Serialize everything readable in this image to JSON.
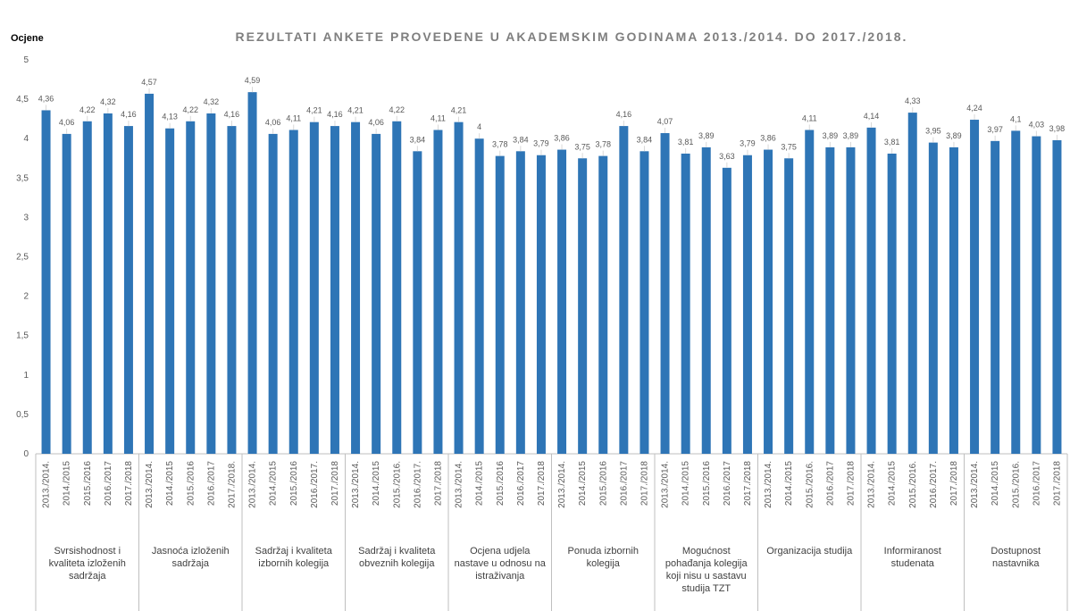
{
  "chart_data": {
    "type": "bar",
    "title": "REZULTATI ANKETE PROVEDENE U AKADEMSKIM GODINAMA 2013./2014. DO 2017./2018.",
    "y_label": "Ocjene",
    "groups": [
      "Svrsishodnost i kvaliteta izloženih sadržaja",
      "Jasnoća izloženih sadržaja",
      "Sadržaj i kvaliteta izbornih kolegija",
      "Sadržaj i kvaliteta obveznih kolegija",
      "Ocjena udjela nastave u odnosu na istraživanja",
      "Ponuda izbornih kolegija",
      "Mogućnost pohađanja kolegija koji nisu u sastavu studija TZT",
      "Organizacija  studija",
      "Informiranost studenata",
      "Dostupnost nastavnika"
    ],
    "categories": [
      "2013./2014.",
      "2014./2015",
      "2015./2016",
      "2016./2017",
      "2017./2018",
      "2013./2014.",
      "2014./2015",
      "2015./2016",
      "2016./2017",
      "2017./2018.",
      "2013./2014.",
      "2014./2015",
      "2015./2016",
      "2016./2017.",
      "2017./2018",
      "2013./2014.",
      "2014./2015",
      "2015./2016.",
      "2016./2017.",
      "2017./2018",
      "2013./2014.",
      "2014./2015",
      "2015./2016",
      "2016./2017",
      "2017./2018",
      "2013./2014.",
      "2014./2015",
      "2015./2016",
      "2016./2017",
      "2017./2018",
      "2013./2014.",
      "2014./2015",
      "2015./2016",
      "2016./2017",
      "2017./2018",
      "2013./2014.",
      "2014./2015",
      "2015./2016.",
      "2016./2017",
      "2017./2018",
      "2013./2014.",
      "2014./2015",
      "2015./2016.",
      "2016./2017.",
      "2017./2018",
      "2013./2014.",
      "2014./2015",
      "2015./2016.",
      "2016./2017",
      "2017./2018"
    ],
    "series": [
      {
        "name": "Ocjene",
        "color": "#2e75b6",
        "values": [
          4.36,
          4.06,
          4.22,
          4.32,
          4.16,
          4.57,
          4.13,
          4.22,
          4.32,
          4.16,
          4.59,
          4.06,
          4.11,
          4.21,
          4.16,
          4.21,
          4.06,
          4.22,
          3.84,
          4.11,
          4.21,
          4,
          3.78,
          3.84,
          3.79,
          3.86,
          3.75,
          3.78,
          4.16,
          3.84,
          4.07,
          3.81,
          3.89,
          3.63,
          3.79,
          3.86,
          3.75,
          4.11,
          3.89,
          3.89,
          4.14,
          3.81,
          4.33,
          3.95,
          3.89,
          4.24,
          3.97,
          4.1,
          4.03,
          3.98
        ],
        "value_labels": [
          "4,36",
          "4,06",
          "4,22",
          "4,32",
          "4,16",
          "4,57",
          "4,13",
          "4,22",
          "4,32",
          "4,16",
          "4,59",
          "4,06",
          "4,11",
          "4,21",
          "4,16",
          "4,21",
          "4,06",
          "4,22",
          "3,84",
          "4,11",
          "4,21",
          "4",
          "3,78",
          "3,84",
          "3,79",
          "3,86",
          "3,75",
          "3,78",
          "4,16",
          "3,84",
          "4,07",
          "3,81",
          "3,89",
          "3,63",
          "3,79",
          "3,86",
          "3,75",
          "4,11",
          "3,89",
          "3,89",
          "4,14",
          "3,81",
          "4,33",
          "3,95",
          "3,89",
          "4,24",
          "3,97",
          "4,1",
          "4,03",
          "3,98"
        ]
      }
    ],
    "ylim": [
      0,
      5
    ],
    "yticks": [
      0,
      {
        "value": 0.5,
        "label": "0,5"
      },
      1,
      {
        "value": 1.5,
        "label": "1,5"
      },
      2,
      {
        "value": 2.5,
        "label": "2,5"
      },
      3,
      {
        "value": 3.5,
        "label": "3,5"
      },
      4,
      {
        "value": 4.5,
        "label": "4,5"
      },
      5
    ],
    "grid": false
  }
}
